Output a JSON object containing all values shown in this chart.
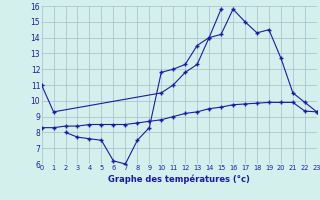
{
  "xlabel": "Graphe des températures (°c)",
  "background_color": "#d4f0ec",
  "grid_color": "#aab8cc",
  "line_color": "#1a1aaa",
  "x_hours": [
    0,
    1,
    2,
    3,
    4,
    5,
    6,
    7,
    8,
    9,
    10,
    11,
    12,
    13,
    14,
    15,
    16,
    17,
    18,
    19,
    20,
    21,
    22,
    23
  ],
  "line1_y": [
    11.0,
    9.3,
    null,
    null,
    null,
    null,
    null,
    null,
    null,
    null,
    10.5,
    11.0,
    11.8,
    12.3,
    14.0,
    14.2,
    15.8,
    15.0,
    14.3,
    14.5,
    12.7,
    10.5,
    9.9,
    9.3
  ],
  "line2_y": [
    null,
    null,
    8.0,
    7.7,
    7.6,
    7.5,
    6.2,
    6.0,
    7.5,
    8.3,
    11.8,
    12.0,
    12.3,
    13.5,
    14.0,
    15.8,
    null,
    null,
    null,
    null,
    null,
    null,
    null,
    null
  ],
  "line3_y": [
    8.3,
    8.3,
    8.4,
    8.4,
    8.5,
    8.5,
    8.5,
    8.5,
    8.6,
    8.7,
    8.8,
    9.0,
    9.2,
    9.3,
    9.5,
    9.6,
    9.75,
    9.8,
    9.85,
    9.9,
    9.9,
    9.9,
    9.35,
    9.3
  ],
  "ylim": [
    6,
    16
  ],
  "xlim": [
    0,
    23
  ],
  "yticks": [
    6,
    7,
    8,
    9,
    10,
    11,
    12,
    13,
    14,
    15,
    16
  ],
  "xticks": [
    0,
    1,
    2,
    3,
    4,
    5,
    6,
    7,
    8,
    9,
    10,
    11,
    12,
    13,
    14,
    15,
    16,
    17,
    18,
    19,
    20,
    21,
    22,
    23
  ]
}
